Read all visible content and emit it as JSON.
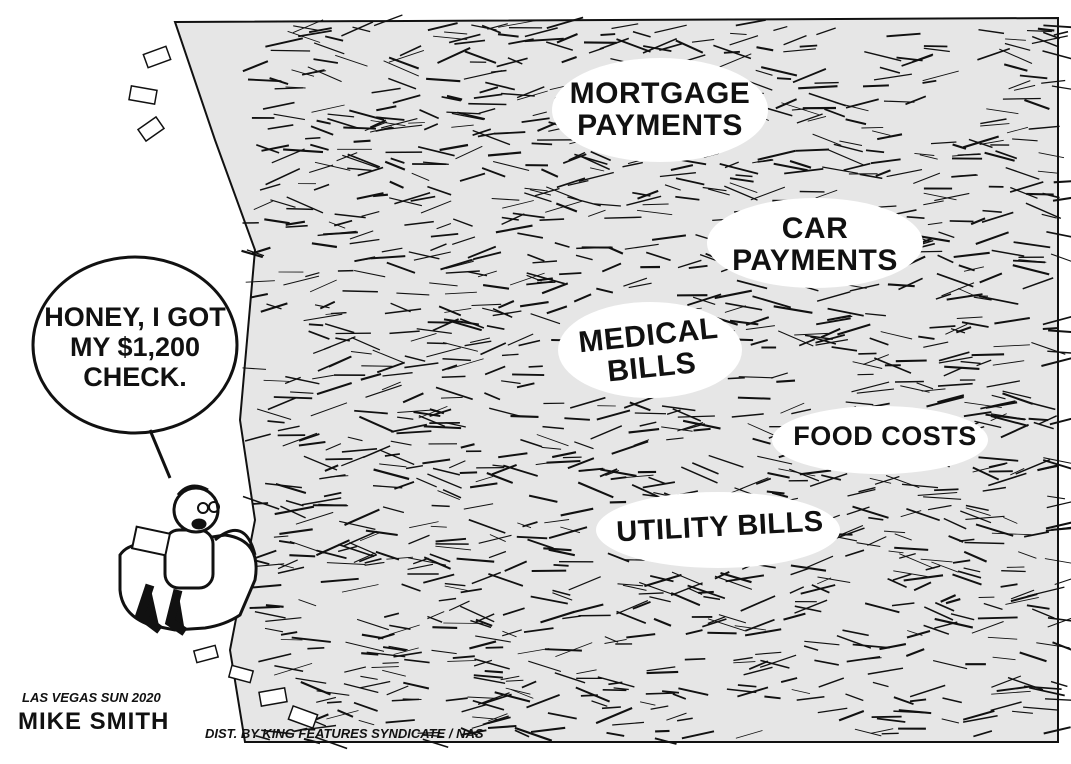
{
  "speech_bubble": {
    "lines": [
      "HONEY, I GOT",
      "MY $1,200",
      "CHECK."
    ]
  },
  "bill_labels": [
    "MORTGAGE\nPAYMENTS",
    "CAR\nPAYMENTS",
    "MEDICAL\nBILLS",
    "FOOD COSTS",
    "UTILITY BILLS"
  ],
  "credits": {
    "publication": "LAS VEGAS SUN 2020",
    "signature": "MIKE SMITH",
    "distribution": "DIST. BY KING FEATURES SYNDICATE / NAS"
  },
  "colors": {
    "ink": "#111111",
    "paper": "#ffffff"
  }
}
